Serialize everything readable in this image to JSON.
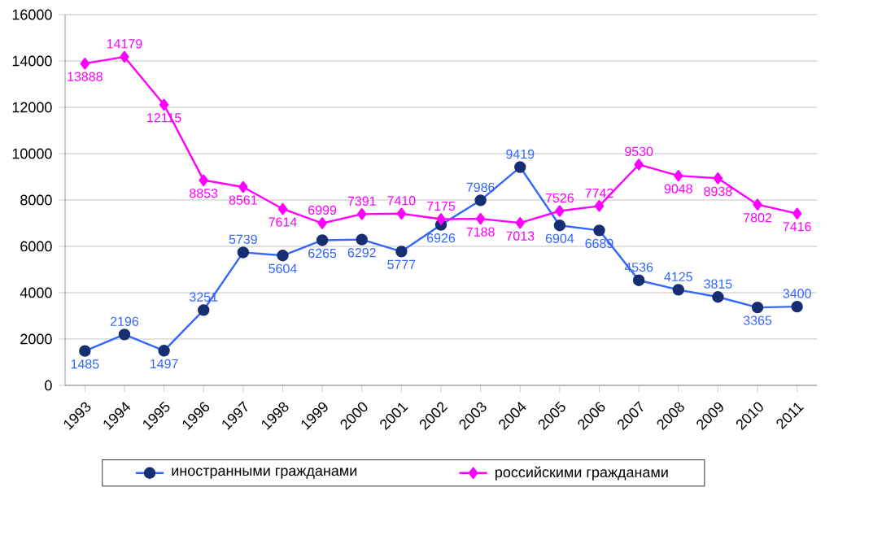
{
  "chart_data": {
    "type": "line",
    "categories": [
      "1993",
      "1994",
      "1995",
      "1996",
      "1997",
      "1998",
      "1999",
      "2000",
      "2001",
      "2002",
      "2003",
      "2004",
      "2005",
      "2006",
      "2007",
      "2008",
      "2009",
      "2010",
      "2011"
    ],
    "series": [
      {
        "name": "иностранными гражданами",
        "color": "#3366ff",
        "marker": "circle",
        "values": [
          1485,
          2196,
          1497,
          3251,
          5739,
          5604,
          6265,
          6292,
          5777,
          6926,
          7986,
          9419,
          6904,
          6689,
          4536,
          4125,
          3815,
          3365,
          3400
        ]
      },
      {
        "name": "российскими гражданами",
        "color": "#ff00ff",
        "marker": "diamond",
        "values": [
          13888,
          14179,
          12115,
          8853,
          8561,
          7614,
          6999,
          7391,
          7410,
          7175,
          7188,
          7013,
          7526,
          7742,
          9530,
          9048,
          8938,
          7802,
          7416
        ]
      }
    ],
    "ylim": [
      0,
      16000
    ],
    "yticks": [
      0,
      2000,
      4000,
      6000,
      8000,
      10000,
      12000,
      14000,
      16000
    ],
    "grid": "y",
    "legend": "bottom",
    "data_labels": true
  }
}
